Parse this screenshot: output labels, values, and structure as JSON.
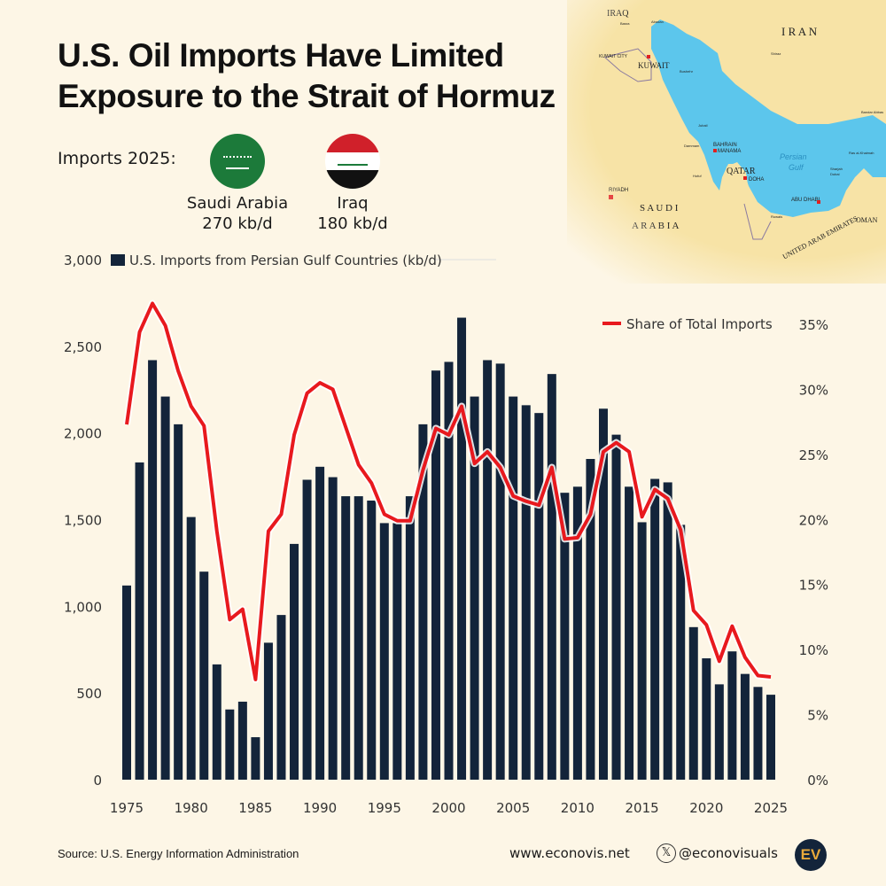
{
  "title_line1": "U.S. Oil Imports Have Limited",
  "title_line2": "Exposure to the Strait of Hormuz",
  "imports_label": "Imports 2025:",
  "countries": [
    {
      "name": "Saudi Arabia",
      "value": "270 kb/d"
    },
    {
      "name": "Iraq",
      "value": "180 kb/d"
    }
  ],
  "map": {
    "labels": {
      "iraq": "IRAQ",
      "iran": "I R A N",
      "kuwait": "KUWAIT",
      "kuwait_city": "KUWAIT CITY",
      "bahrain": "BAHRAIN",
      "manama": "MANAMA",
      "qatar": "QATAR",
      "doha": "DOHA",
      "riyadh": "RIYADH",
      "saudi1": "S A U D I",
      "saudi2": "A R A B I A",
      "abu_dhabi": "ABU DHABI",
      "uae": "UNITED ARAB EMIRATES",
      "oman": "OMAN",
      "gulf1": "Persian",
      "gulf2": "Gulf",
      "basra": "Basra",
      "abadan": "Abadan",
      "bushehr": "Bushehr",
      "shiraz": "Shiraz",
      "jubail": "Jubail",
      "dammam": "Dammam",
      "hofuf": "Hofuf",
      "bandar_abbas": "Bandar Abbas",
      "dubai": "Dubai",
      "sharjah": "Sharjah",
      "ras_al_khaimah": "Ras al-Khaimah",
      "ruwais": "Ruwais"
    },
    "colors": {
      "water": "#5cc6ec",
      "land": "#f7e3a6",
      "capital": "#e02020"
    }
  },
  "chart_data": {
    "type": "bar+line",
    "x": [
      1975,
      1976,
      1977,
      1978,
      1979,
      1980,
      1981,
      1982,
      1983,
      1984,
      1985,
      1986,
      1987,
      1988,
      1989,
      1990,
      1991,
      1992,
      1993,
      1994,
      1995,
      1996,
      1997,
      1998,
      1999,
      2000,
      2001,
      2002,
      2003,
      2004,
      2005,
      2006,
      2007,
      2008,
      2009,
      2010,
      2011,
      2012,
      2013,
      2014,
      2015,
      2016,
      2017,
      2018,
      2019,
      2020,
      2021,
      2022,
      2023,
      2024,
      2025
    ],
    "series": [
      {
        "name": "U.S. Imports from Persian Gulf Countries (kb/d)",
        "type": "bar",
        "axis": "left",
        "color": "#13243a",
        "values": [
          1120,
          1830,
          2420,
          2210,
          2050,
          1515,
          1200,
          665,
          405,
          450,
          245,
          790,
          950,
          1360,
          1730,
          1805,
          1745,
          1635,
          1635,
          1610,
          1480,
          1480,
          1635,
          2050,
          2360,
          2410,
          2665,
          2210,
          2420,
          2400,
          2210,
          2160,
          2115,
          2340,
          1655,
          1690,
          1850,
          2140,
          1990,
          1690,
          1485,
          1735,
          1715,
          1470,
          880,
          700,
          550,
          740,
          610,
          535,
          490
        ]
      },
      {
        "name": "Share of Total Imports",
        "type": "line",
        "axis": "right",
        "color": "#e8191e",
        "values": [
          27.3,
          34.4,
          36.6,
          34.9,
          31.4,
          28.7,
          27.2,
          19.1,
          12.3,
          13.1,
          7.7,
          19.1,
          20.4,
          26.5,
          29.7,
          30.5,
          30.0,
          27.1,
          24.2,
          22.8,
          20.4,
          19.9,
          19.9,
          23.8,
          27.0,
          26.5,
          28.7,
          24.3,
          25.2,
          24.0,
          21.8,
          21.4,
          21.1,
          24.0,
          18.5,
          18.6,
          20.4,
          25.2,
          25.9,
          25.2,
          20.2,
          22.3,
          21.6,
          19.2,
          13.0,
          11.9,
          9.1,
          11.8,
          9.4,
          8.0,
          7.9
        ]
      }
    ],
    "y_left": {
      "range": [
        0,
        3000
      ],
      "ticks": [
        0,
        500,
        1000,
        1500,
        2000,
        2500,
        3000
      ],
      "tick_labels": [
        "0",
        "500",
        "1,000",
        "1,500",
        "2,000",
        "2,500",
        "3,000"
      ]
    },
    "y_right": {
      "range": [
        0,
        35
      ],
      "ticks": [
        0,
        5,
        10,
        15,
        20,
        25,
        30,
        35
      ],
      "tick_labels": [
        "0%",
        "5%",
        "10%",
        "15%",
        "20%",
        "25%",
        "30%",
        "35%"
      ]
    },
    "x_ticks": [
      1975,
      1980,
      1985,
      1990,
      1995,
      2000,
      2005,
      2010,
      2015,
      2020,
      2025
    ],
    "grid": false,
    "legend_position": "top"
  },
  "footer": {
    "source": "Source: U.S. Energy Information Administration",
    "website": "www.econovis.net",
    "handle": "@econovisuals",
    "logo": "EV"
  }
}
